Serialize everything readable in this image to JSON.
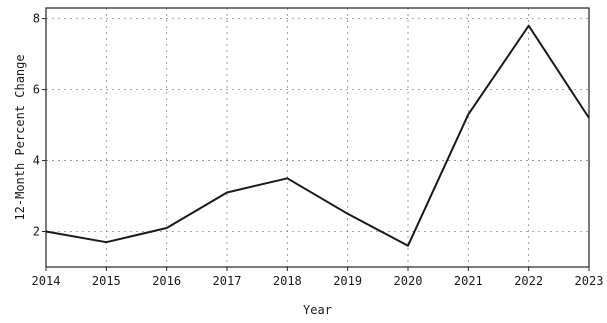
{
  "chart_data": {
    "type": "line",
    "title": "",
    "xlabel": "Year",
    "ylabel": "12-Month Percent Change",
    "x": [
      2014,
      2015,
      2016,
      2017,
      2018,
      2019,
      2020,
      2021,
      2022,
      2023
    ],
    "series": [
      {
        "values": [
          2.0,
          1.7,
          2.1,
          3.1,
          3.5,
          2.5,
          1.6,
          5.3,
          7.8,
          5.2
        ]
      }
    ],
    "xlim": [
      2014,
      2023
    ],
    "ylim": [
      1,
      8.3
    ],
    "xticks": [
      "2014",
      "2015",
      "2016",
      "2017",
      "2018",
      "2019",
      "2020",
      "2021",
      "2022",
      "2023"
    ],
    "yticks": [
      "2",
      "4",
      "6",
      "8"
    ],
    "grid": true,
    "colors": {
      "line": "#1a1a1a",
      "grid": "#8a8a8a",
      "frame": "#222222"
    }
  }
}
